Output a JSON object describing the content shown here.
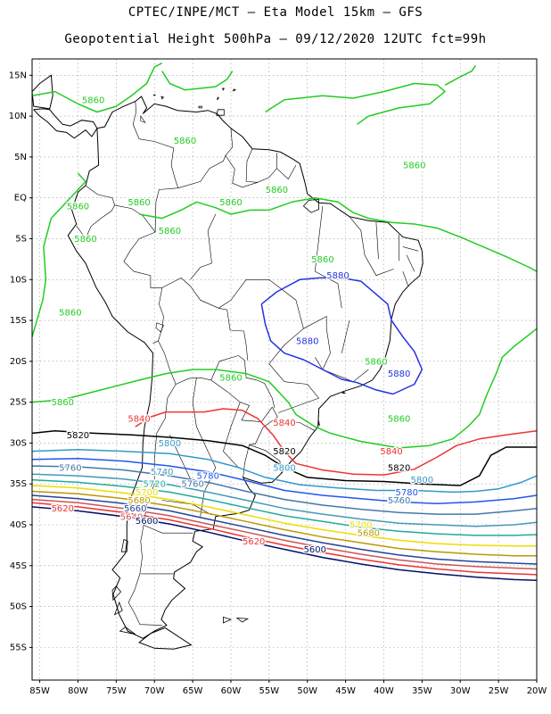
{
  "header": {
    "line1": "CPTEC/INPE/MCT –  Eta Model 15km – GFS",
    "line2": "Geopotential Height 500hPa – 09/12/2020 12UTC fct=99h"
  },
  "map": {
    "lon_range": [
      -86,
      -20
    ],
    "lat_range": [
      -59,
      17
    ],
    "lat_ticks": [
      {
        "value": 15,
        "label": "15N"
      },
      {
        "value": 10,
        "label": "10N"
      },
      {
        "value": 5,
        "label": "5N"
      },
      {
        "value": 0,
        "label": "EQ"
      },
      {
        "value": -5,
        "label": "5S"
      },
      {
        "value": -10,
        "label": "10S"
      },
      {
        "value": -15,
        "label": "15S"
      },
      {
        "value": -20,
        "label": "20S"
      },
      {
        "value": -25,
        "label": "25S"
      },
      {
        "value": -30,
        "label": "30S"
      },
      {
        "value": -35,
        "label": "35S"
      },
      {
        "value": -40,
        "label": "40S"
      },
      {
        "value": -45,
        "label": "45S"
      },
      {
        "value": -50,
        "label": "50S"
      },
      {
        "value": -55,
        "label": "55S"
      }
    ],
    "lon_ticks": [
      {
        "value": -85,
        "label": "85W"
      },
      {
        "value": -80,
        "label": "80W"
      },
      {
        "value": -75,
        "label": "75W"
      },
      {
        "value": -70,
        "label": "70W"
      },
      {
        "value": -65,
        "label": "65W"
      },
      {
        "value": -60,
        "label": "60W"
      },
      {
        "value": -55,
        "label": "55W"
      },
      {
        "value": -50,
        "label": "50W"
      },
      {
        "value": -45,
        "label": "45W"
      },
      {
        "value": -40,
        "label": "40W"
      },
      {
        "value": -35,
        "label": "35W"
      },
      {
        "value": -30,
        "label": "30W"
      },
      {
        "value": -25,
        "label": "25W"
      },
      {
        "value": -20,
        "label": "20W"
      }
    ],
    "grid": true,
    "coastline_color": "#000000"
  },
  "contours": [
    {
      "level": "5860",
      "color": "#22cc22",
      "labels": [
        [
          -78,
          12
        ],
        [
          -66,
          7
        ],
        [
          -36,
          4
        ],
        [
          -80,
          -1
        ],
        [
          -72,
          -0.5
        ],
        [
          -60,
          -0.5
        ],
        [
          -54,
          1
        ],
        [
          -68,
          -4
        ],
        [
          -79,
          -5
        ],
        [
          -60,
          -22
        ],
        [
          -81,
          -14
        ],
        [
          -82,
          -25
        ],
        [
          -48,
          -7.5
        ],
        [
          -38,
          -27
        ],
        [
          -41,
          -20
        ]
      ]
    },
    {
      "level": "5880",
      "color": "#2233dd",
      "labels": [
        [
          -46,
          -9.5
        ],
        [
          -50,
          -17.5
        ],
        [
          -38,
          -21.5
        ]
      ]
    },
    {
      "level": "5840",
      "color": "#ee3333",
      "labels": [
        [
          -72,
          -27
        ],
        [
          -53,
          -27.5
        ],
        [
          -39,
          -31
        ]
      ]
    },
    {
      "level": "5820",
      "color": "#000000",
      "labels": [
        [
          -80,
          -29
        ],
        [
          -53,
          -31
        ],
        [
          -38,
          -33
        ]
      ]
    },
    {
      "level": "5800",
      "color": "#3399cc",
      "labels": [
        [
          -68,
          -30
        ],
        [
          -53,
          -33
        ],
        [
          -35,
          -34.5
        ]
      ]
    },
    {
      "level": "5780",
      "color": "#2255ee",
      "labels": [
        [
          -63,
          -34
        ],
        [
          -37,
          -36
        ]
      ]
    },
    {
      "level": "5760",
      "color": "#4477aa",
      "labels": [
        [
          -81,
          -33
        ],
        [
          -65,
          -35
        ],
        [
          -38,
          -37
        ]
      ]
    },
    {
      "level": "5740",
      "color": "#4499bb",
      "labels": [
        [
          -69,
          -33.5
        ]
      ]
    },
    {
      "level": "5720",
      "color": "#22aa99",
      "labels": [
        [
          -70,
          -35
        ]
      ]
    },
    {
      "level": "5700",
      "color": "#eedd00",
      "labels": [
        [
          -71,
          -36
        ],
        [
          -43,
          -40
        ]
      ]
    },
    {
      "level": "5680",
      "color": "#bb9900",
      "labels": [
        [
          -72,
          -37
        ],
        [
          -42,
          -41
        ]
      ]
    },
    {
      "level": "5660",
      "color": "#224499",
      "labels": [
        [
          -72.5,
          -38
        ]
      ]
    },
    {
      "level": "5640",
      "color": "#cc5555",
      "labels": [
        [
          -73,
          -39
        ]
      ]
    },
    {
      "level": "5620",
      "color": "#ee3333",
      "labels": [
        [
          -82,
          -38
        ],
        [
          -57,
          -42
        ]
      ]
    },
    {
      "level": "5600",
      "color": "#001166",
      "labels": [
        [
          -71,
          -39.5
        ],
        [
          -49,
          -43
        ]
      ]
    }
  ]
}
